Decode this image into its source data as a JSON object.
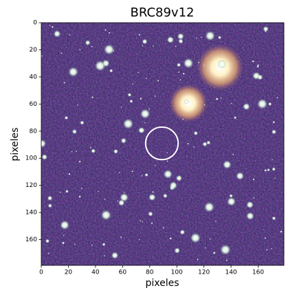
{
  "chart_data": {
    "type": "image",
    "title": "BRC89v12",
    "x_label": "pixeles",
    "y_label": "pixeles",
    "xlim": [
      0,
      179
    ],
    "ylim": [
      0,
      179
    ],
    "y_inverted": true,
    "xticks": [
      0,
      20,
      40,
      60,
      80,
      100,
      120,
      140,
      160
    ],
    "yticks": [
      0,
      20,
      40,
      60,
      80,
      100,
      120,
      140,
      160
    ],
    "marker": {
      "x": 89,
      "y": 89,
      "r": 12,
      "color": "#ffffff"
    }
  }
}
